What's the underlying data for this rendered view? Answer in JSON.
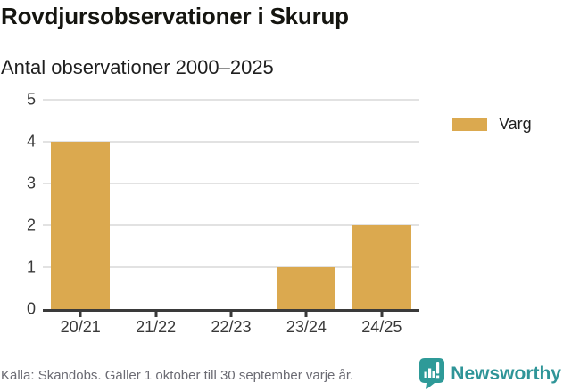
{
  "header": {
    "title": "Rovdjursobservationer i Skurup",
    "subtitle": "Antal observationer 2000–2025"
  },
  "chart_data": {
    "type": "bar",
    "title": "Rovdjursobservationer i Skurup",
    "subtitle": "Antal observationer 2000–2025",
    "categories": [
      "20/21",
      "21/22",
      "22/23",
      "23/24",
      "24/25"
    ],
    "series": [
      {
        "name": "Varg",
        "color": "#DBA94F",
        "values": [
          4,
          0,
          0,
          1,
          2
        ]
      }
    ],
    "xlabel": "",
    "ylabel": "",
    "ylim": [
      0,
      5
    ],
    "yticks": [
      0,
      1,
      2,
      3,
      4,
      5
    ],
    "grid": true,
    "legend_position": "right-top"
  },
  "legend": {
    "items": [
      {
        "label": "Varg",
        "color": "#DBA94F"
      }
    ]
  },
  "footer": {
    "source": "Källa: Skandobs. Gäller 1 oktober till 30 september varje år.",
    "brand": "Newsworthy"
  },
  "colors": {
    "bar": "#DBA94F",
    "axis": "#3a3a3a",
    "gridline": "#e2e2e2",
    "brand_teal": "#2f9598",
    "source_text": "#6b6b73"
  }
}
